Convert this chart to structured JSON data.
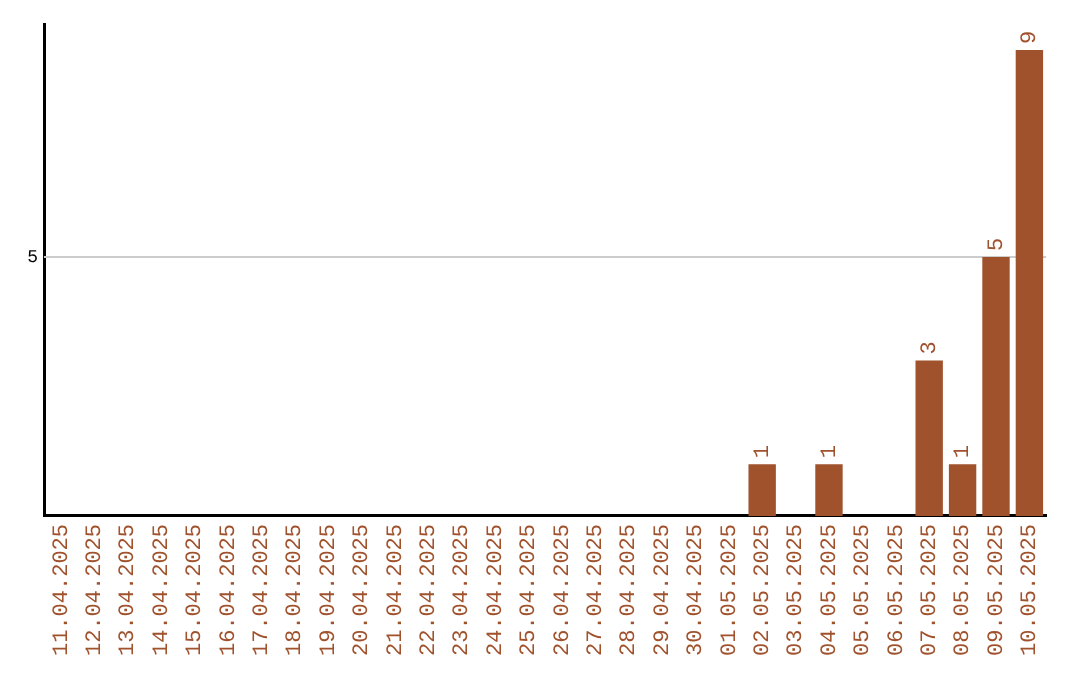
{
  "chart_data": {
    "type": "bar",
    "categories": [
      "11.04.2025",
      "12.04.2025",
      "13.04.2025",
      "14.04.2025",
      "15.04.2025",
      "16.04.2025",
      "17.04.2025",
      "18.04.2025",
      "19.04.2025",
      "20.04.2025",
      "21.04.2025",
      "22.04.2025",
      "23.04.2025",
      "24.04.2025",
      "25.04.2025",
      "26.04.2025",
      "27.04.2025",
      "28.04.2025",
      "29.04.2025",
      "30.04.2025",
      "01.05.2025",
      "02.05.2025",
      "03.05.2025",
      "04.05.2025",
      "05.05.2025",
      "06.05.2025",
      "07.05.2025",
      "08.05.2025",
      "09.05.2025",
      "10.05.2025"
    ],
    "values": [
      null,
      null,
      null,
      null,
      null,
      null,
      null,
      null,
      null,
      null,
      null,
      null,
      null,
      null,
      null,
      null,
      null,
      null,
      null,
      null,
      null,
      1,
      null,
      1,
      null,
      null,
      3,
      1,
      5,
      9
    ],
    "data_labels": true,
    "color": "#a0522d",
    "ylim": [
      0,
      9.5
    ],
    "ref_lines": [
      {
        "axis": "y",
        "value": 5,
        "label": "5",
        "color": "#cccccc"
      }
    ],
    "legend": false
  }
}
